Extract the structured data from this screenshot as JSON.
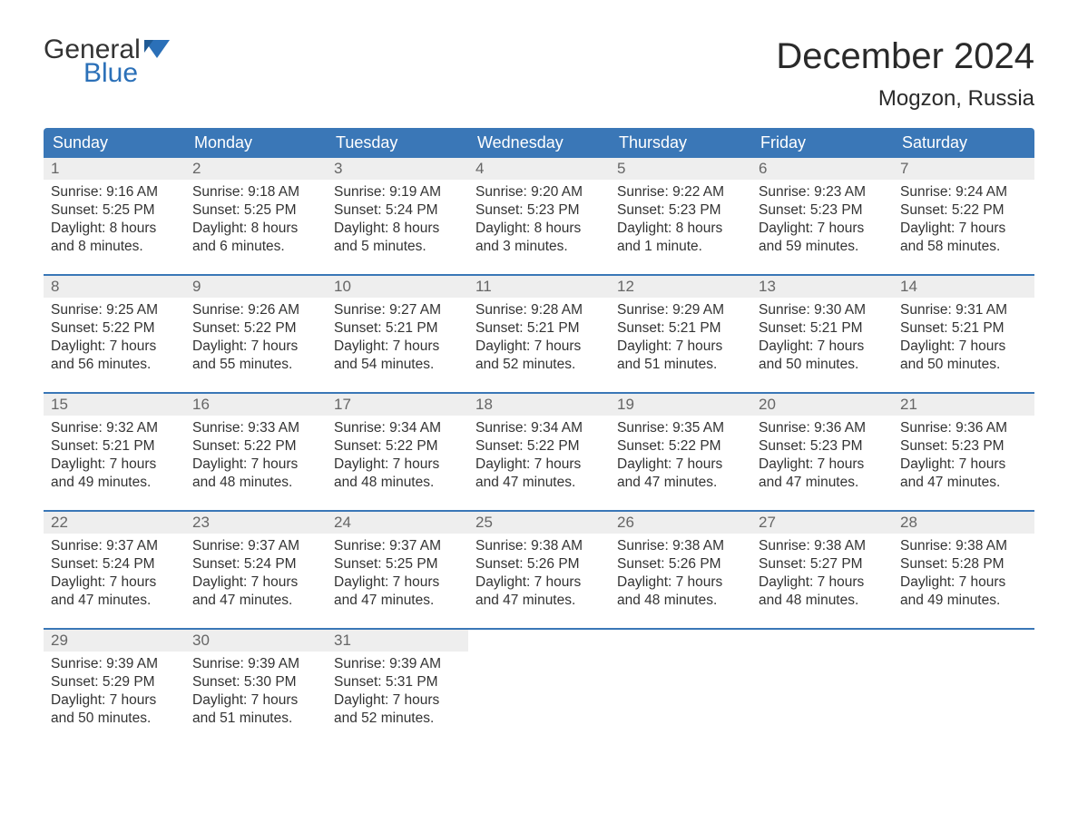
{
  "brand": {
    "word1": "General",
    "word2": "Blue",
    "flag_color": "#2b70b8"
  },
  "title": "December 2024",
  "location": "Mogzon, Russia",
  "colors": {
    "header_bg": "#3a77b7",
    "header_text": "#ffffff",
    "daynum_bg": "#eeeeee",
    "daynum_text": "#666666",
    "body_text": "#333333",
    "divider": "#3a77b7",
    "page_bg": "#ffffff"
  },
  "day_names": [
    "Sunday",
    "Monday",
    "Tuesday",
    "Wednesday",
    "Thursday",
    "Friday",
    "Saturday"
  ],
  "weeks": [
    [
      {
        "n": "1",
        "sunrise": "Sunrise: 9:16 AM",
        "sunset": "Sunset: 5:25 PM",
        "dl1": "Daylight: 8 hours",
        "dl2": "and 8 minutes."
      },
      {
        "n": "2",
        "sunrise": "Sunrise: 9:18 AM",
        "sunset": "Sunset: 5:25 PM",
        "dl1": "Daylight: 8 hours",
        "dl2": "and 6 minutes."
      },
      {
        "n": "3",
        "sunrise": "Sunrise: 9:19 AM",
        "sunset": "Sunset: 5:24 PM",
        "dl1": "Daylight: 8 hours",
        "dl2": "and 5 minutes."
      },
      {
        "n": "4",
        "sunrise": "Sunrise: 9:20 AM",
        "sunset": "Sunset: 5:23 PM",
        "dl1": "Daylight: 8 hours",
        "dl2": "and 3 minutes."
      },
      {
        "n": "5",
        "sunrise": "Sunrise: 9:22 AM",
        "sunset": "Sunset: 5:23 PM",
        "dl1": "Daylight: 8 hours",
        "dl2": "and 1 minute."
      },
      {
        "n": "6",
        "sunrise": "Sunrise: 9:23 AM",
        "sunset": "Sunset: 5:23 PM",
        "dl1": "Daylight: 7 hours",
        "dl2": "and 59 minutes."
      },
      {
        "n": "7",
        "sunrise": "Sunrise: 9:24 AM",
        "sunset": "Sunset: 5:22 PM",
        "dl1": "Daylight: 7 hours",
        "dl2": "and 58 minutes."
      }
    ],
    [
      {
        "n": "8",
        "sunrise": "Sunrise: 9:25 AM",
        "sunset": "Sunset: 5:22 PM",
        "dl1": "Daylight: 7 hours",
        "dl2": "and 56 minutes."
      },
      {
        "n": "9",
        "sunrise": "Sunrise: 9:26 AM",
        "sunset": "Sunset: 5:22 PM",
        "dl1": "Daylight: 7 hours",
        "dl2": "and 55 minutes."
      },
      {
        "n": "10",
        "sunrise": "Sunrise: 9:27 AM",
        "sunset": "Sunset: 5:21 PM",
        "dl1": "Daylight: 7 hours",
        "dl2": "and 54 minutes."
      },
      {
        "n": "11",
        "sunrise": "Sunrise: 9:28 AM",
        "sunset": "Sunset: 5:21 PM",
        "dl1": "Daylight: 7 hours",
        "dl2": "and 52 minutes."
      },
      {
        "n": "12",
        "sunrise": "Sunrise: 9:29 AM",
        "sunset": "Sunset: 5:21 PM",
        "dl1": "Daylight: 7 hours",
        "dl2": "and 51 minutes."
      },
      {
        "n": "13",
        "sunrise": "Sunrise: 9:30 AM",
        "sunset": "Sunset: 5:21 PM",
        "dl1": "Daylight: 7 hours",
        "dl2": "and 50 minutes."
      },
      {
        "n": "14",
        "sunrise": "Sunrise: 9:31 AM",
        "sunset": "Sunset: 5:21 PM",
        "dl1": "Daylight: 7 hours",
        "dl2": "and 50 minutes."
      }
    ],
    [
      {
        "n": "15",
        "sunrise": "Sunrise: 9:32 AM",
        "sunset": "Sunset: 5:21 PM",
        "dl1": "Daylight: 7 hours",
        "dl2": "and 49 minutes."
      },
      {
        "n": "16",
        "sunrise": "Sunrise: 9:33 AM",
        "sunset": "Sunset: 5:22 PM",
        "dl1": "Daylight: 7 hours",
        "dl2": "and 48 minutes."
      },
      {
        "n": "17",
        "sunrise": "Sunrise: 9:34 AM",
        "sunset": "Sunset: 5:22 PM",
        "dl1": "Daylight: 7 hours",
        "dl2": "and 48 minutes."
      },
      {
        "n": "18",
        "sunrise": "Sunrise: 9:34 AM",
        "sunset": "Sunset: 5:22 PM",
        "dl1": "Daylight: 7 hours",
        "dl2": "and 47 minutes."
      },
      {
        "n": "19",
        "sunrise": "Sunrise: 9:35 AM",
        "sunset": "Sunset: 5:22 PM",
        "dl1": "Daylight: 7 hours",
        "dl2": "and 47 minutes."
      },
      {
        "n": "20",
        "sunrise": "Sunrise: 9:36 AM",
        "sunset": "Sunset: 5:23 PM",
        "dl1": "Daylight: 7 hours",
        "dl2": "and 47 minutes."
      },
      {
        "n": "21",
        "sunrise": "Sunrise: 9:36 AM",
        "sunset": "Sunset: 5:23 PM",
        "dl1": "Daylight: 7 hours",
        "dl2": "and 47 minutes."
      }
    ],
    [
      {
        "n": "22",
        "sunrise": "Sunrise: 9:37 AM",
        "sunset": "Sunset: 5:24 PM",
        "dl1": "Daylight: 7 hours",
        "dl2": "and 47 minutes."
      },
      {
        "n": "23",
        "sunrise": "Sunrise: 9:37 AM",
        "sunset": "Sunset: 5:24 PM",
        "dl1": "Daylight: 7 hours",
        "dl2": "and 47 minutes."
      },
      {
        "n": "24",
        "sunrise": "Sunrise: 9:37 AM",
        "sunset": "Sunset: 5:25 PM",
        "dl1": "Daylight: 7 hours",
        "dl2": "and 47 minutes."
      },
      {
        "n": "25",
        "sunrise": "Sunrise: 9:38 AM",
        "sunset": "Sunset: 5:26 PM",
        "dl1": "Daylight: 7 hours",
        "dl2": "and 47 minutes."
      },
      {
        "n": "26",
        "sunrise": "Sunrise: 9:38 AM",
        "sunset": "Sunset: 5:26 PM",
        "dl1": "Daylight: 7 hours",
        "dl2": "and 48 minutes."
      },
      {
        "n": "27",
        "sunrise": "Sunrise: 9:38 AM",
        "sunset": "Sunset: 5:27 PM",
        "dl1": "Daylight: 7 hours",
        "dl2": "and 48 minutes."
      },
      {
        "n": "28",
        "sunrise": "Sunrise: 9:38 AM",
        "sunset": "Sunset: 5:28 PM",
        "dl1": "Daylight: 7 hours",
        "dl2": "and 49 minutes."
      }
    ],
    [
      {
        "n": "29",
        "sunrise": "Sunrise: 9:39 AM",
        "sunset": "Sunset: 5:29 PM",
        "dl1": "Daylight: 7 hours",
        "dl2": "and 50 minutes."
      },
      {
        "n": "30",
        "sunrise": "Sunrise: 9:39 AM",
        "sunset": "Sunset: 5:30 PM",
        "dl1": "Daylight: 7 hours",
        "dl2": "and 51 minutes."
      },
      {
        "n": "31",
        "sunrise": "Sunrise: 9:39 AM",
        "sunset": "Sunset: 5:31 PM",
        "dl1": "Daylight: 7 hours",
        "dl2": "and 52 minutes."
      },
      null,
      null,
      null,
      null
    ]
  ]
}
